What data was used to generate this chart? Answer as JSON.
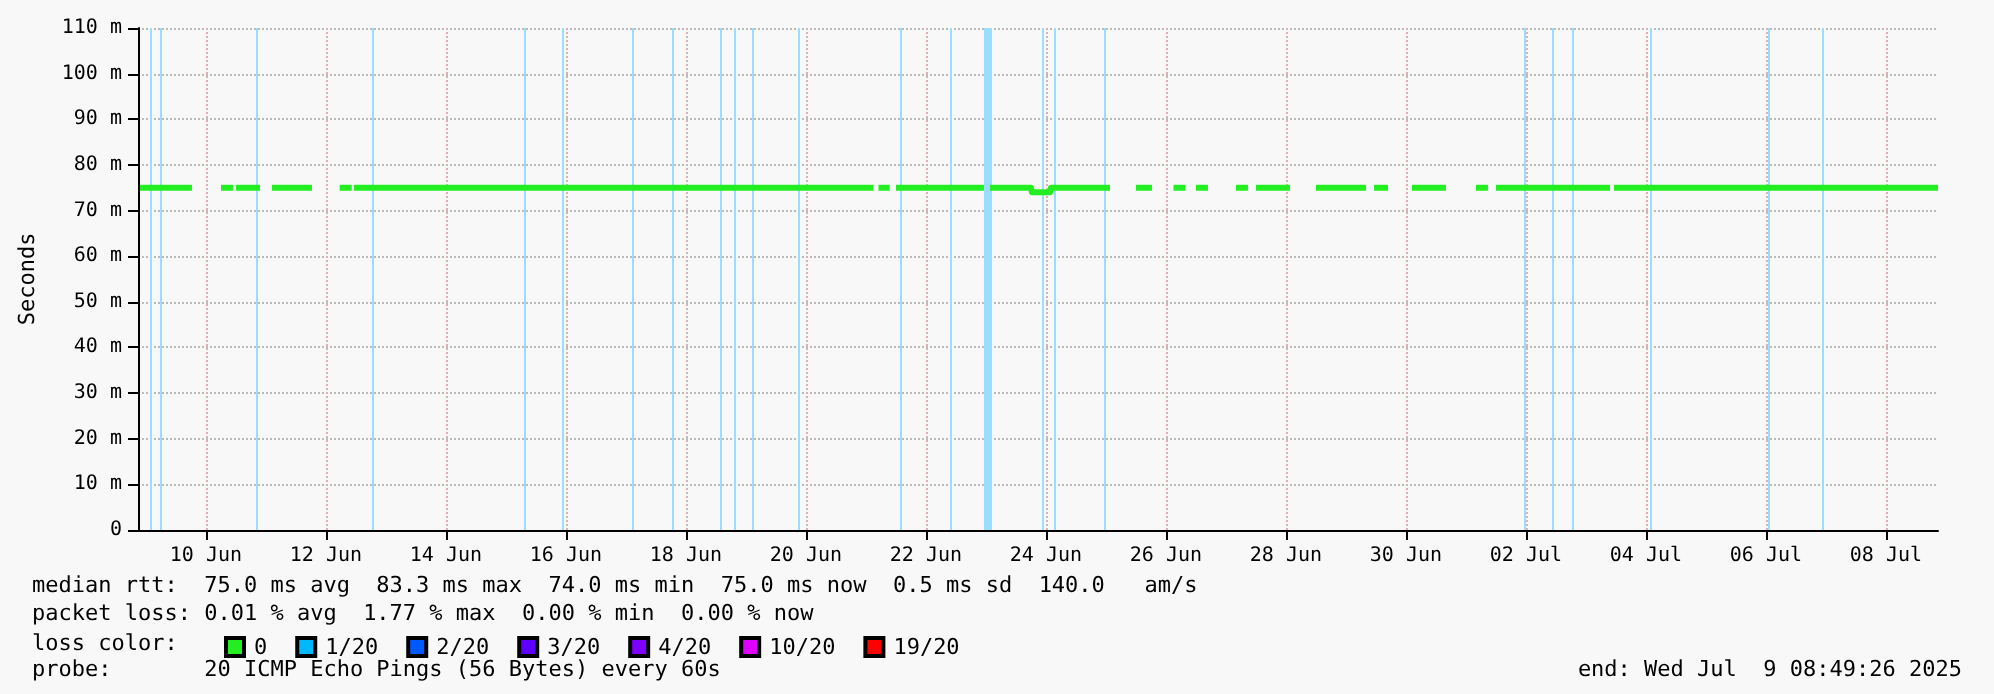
{
  "chart_data": {
    "type": "line",
    "ylabel": "Seconds",
    "xlim": [
      "2025-06-09T08:49",
      "2025-07-09T08:49"
    ],
    "xticks": [
      {
        "value": "2025-06-10T12:00",
        "label": "10 Jun"
      },
      {
        "value": "2025-06-12T12:00",
        "label": "12 Jun"
      },
      {
        "value": "2025-06-14T12:00",
        "label": "14 Jun"
      },
      {
        "value": "2025-06-16T12:00",
        "label": "16 Jun"
      },
      {
        "value": "2025-06-18T12:00",
        "label": "18 Jun"
      },
      {
        "value": "2025-06-20T12:00",
        "label": "20 Jun"
      },
      {
        "value": "2025-06-22T12:00",
        "label": "22 Jun"
      },
      {
        "value": "2025-06-24T12:00",
        "label": "24 Jun"
      },
      {
        "value": "2025-06-26T12:00",
        "label": "26 Jun"
      },
      {
        "value": "2025-06-28T12:00",
        "label": "28 Jun"
      },
      {
        "value": "2025-06-30T12:00",
        "label": "30 Jun"
      },
      {
        "value": "2025-07-02T12:00",
        "label": "02 Jul"
      },
      {
        "value": "2025-07-04T12:00",
        "label": "04 Jul"
      },
      {
        "value": "2025-07-06T12:00",
        "label": "06 Jul"
      },
      {
        "value": "2025-07-08T12:00",
        "label": "08 Jul"
      }
    ],
    "ylim": [
      0,
      110
    ],
    "yticks": [
      0,
      {
        "value": 10,
        "label": "10 m"
      },
      {
        "value": 20,
        "label": "20 m"
      },
      {
        "value": 30,
        "label": "30 m"
      },
      {
        "value": 40,
        "label": "40 m"
      },
      {
        "value": 50,
        "label": "50 m"
      },
      {
        "value": 60,
        "label": "60 m"
      },
      {
        "value": 70,
        "label": "70 m"
      },
      {
        "value": 80,
        "label": "80 m"
      },
      {
        "value": 90,
        "label": "90 m"
      },
      {
        "value": 100,
        "label": "100 m"
      },
      {
        "value": 110,
        "label": "110 m"
      }
    ],
    "grid": true,
    "legend": "bottom left",
    "legend_title": "loss color:",
    "marker": "none",
    "line_style": "solid",
    "series": [
      {
        "name": "0",
        "color": "#22ee22",
        "x": [
          "2025-06-09T09:36",
          "2025-06-10T06:24",
          "2025-06-10T13:00",
          "2025-06-10T18:00",
          "2025-06-10T22:48",
          "2025-06-10T23:20",
          "2025-06-11T00:00",
          "2025-06-11T09:36",
          "2025-06-11T12:00",
          "2025-06-11T14:24",
          "2025-06-12T06:24",
          "2025-06-12T12:00",
          "2025-06-12T17:30",
          "2025-06-12T22:18",
          "2025-06-12T22:40",
          "2025-06-12T23:12",
          "2025-06-21T15:00",
          "2025-06-21T16:00",
          "2025-06-21T17:00",
          "2025-06-21T21:30",
          "2025-06-21T22:30",
          "2025-06-22T00:00",
          "2025-06-23T11:12",
          "2025-06-23T12:30",
          "2025-06-23T13:36",
          "2025-06-24T06:00",
          "2025-06-24T06:24",
          "2025-06-24T13:36",
          "2025-06-24T14:00",
          "2025-06-25T12:00",
          "2025-06-25T13:00",
          "2025-06-25T13:36",
          "2025-06-25T18:00",
          "2025-06-26T00:00",
          "2025-06-26T06:24",
          "2025-06-26T12:00",
          "2025-06-26T15:00",
          "2025-06-26T19:48",
          "2025-06-26T21:00",
          "2025-06-27T00:00",
          "2025-06-27T04:48",
          "2025-06-27T12:00",
          "2025-06-27T16:00",
          "2025-06-27T20:48",
          "2025-06-27T21:40",
          "2025-06-28T00:00",
          "2025-06-28T13:36",
          "2025-06-28T18:00",
          "2025-06-29T00:00",
          "2025-06-29T20:00",
          "2025-06-29T21:30",
          "2025-06-29T23:12",
          "2025-06-30T04:48",
          "2025-06-30T09:00",
          "2025-06-30T14:24",
          "2025-07-01T04:00",
          "2025-07-01T10:00",
          "2025-07-01T16:00",
          "2025-07-01T20:48",
          "2025-07-01T21:40",
          "2025-07-02T00:00",
          "2025-07-03T21:36",
          "2025-07-03T22:20",
          "2025-07-03T23:12",
          "2025-07-09T08:48"
        ],
        "values": [
          75,
          75,
          null,
          75,
          75,
          null,
          75,
          75,
          null,
          75,
          75,
          null,
          75,
          75,
          null,
          75,
          75,
          null,
          75,
          75,
          null,
          75,
          75,
          null,
          75,
          75,
          74,
          74,
          75,
          75,
          75,
          75,
          null,
          75,
          75,
          null,
          75,
          75,
          null,
          75,
          75,
          null,
          75,
          75,
          null,
          75,
          75,
          null,
          75,
          75,
          null,
          75,
          75,
          null,
          75,
          75,
          null,
          75,
          75,
          null,
          75,
          75,
          null,
          75,
          75
        ]
      },
      {
        "name": "1/20",
        "color": "#00b8ff"
      },
      {
        "name": "2/20",
        "color": "#0059ff"
      },
      {
        "name": "3/20",
        "color": "#5e00ff"
      },
      {
        "name": "4/20",
        "color": "#7e00ff"
      },
      {
        "name": "10/20",
        "color": "#dd00ff"
      },
      {
        "name": "19/20",
        "color": "#ff0000"
      }
    ],
    "ref_lines": [
      {
        "axis": "x",
        "value": "2025-06-09T13:36",
        "color": "#99ddff"
      },
      {
        "axis": "x",
        "value": "2025-06-09T17:36",
        "color": "#99ddff"
      },
      {
        "axis": "x",
        "value": "2025-06-11T08:00",
        "color": "#99ddff"
      },
      {
        "axis": "x",
        "value": "2025-06-13T06:24",
        "color": "#99ddff"
      },
      {
        "axis": "x",
        "value": "2025-06-15T19:12",
        "color": "#99ddff"
      },
      {
        "axis": "x",
        "value": "2025-06-16T10:24",
        "color": "#99ddff"
      },
      {
        "axis": "x",
        "value": "2025-06-17T14:24",
        "color": "#99ddff"
      },
      {
        "axis": "x",
        "value": "2025-06-18T06:24",
        "color": "#99ddff"
      },
      {
        "axis": "x",
        "value": "2025-06-19T01:36",
        "color": "#99ddff"
      },
      {
        "axis": "x",
        "value": "2025-06-19T07:12",
        "color": "#99ddff"
      },
      {
        "axis": "x",
        "value": "2025-06-19T14:24",
        "color": "#99ddff"
      },
      {
        "axis": "x",
        "value": "2025-06-20T08:48",
        "color": "#99ddff"
      },
      {
        "axis": "x",
        "value": "2025-06-22T01:36",
        "color": "#99ddff"
      },
      {
        "axis": "x",
        "value": "2025-06-22T21:36",
        "color": "#99ddff"
      },
      {
        "axis": "x",
        "value": "2025-06-24T10:24",
        "color": "#99ddff"
      },
      {
        "axis": "x",
        "value": "2025-06-24T15:12",
        "color": "#99ddff"
      },
      {
        "axis": "x",
        "value": "2025-06-25T11:12",
        "color": "#99ddff"
      },
      {
        "axis": "x",
        "value": "2025-07-02T11:12",
        "color": "#99ddff"
      },
      {
        "axis": "x",
        "value": "2025-07-02T22:24",
        "color": "#99ddff"
      },
      {
        "axis": "x",
        "value": "2025-07-03T06:24",
        "color": "#99ddff"
      },
      {
        "axis": "x",
        "value": "2025-07-04T13:36",
        "color": "#99ddff"
      },
      {
        "axis": "x",
        "value": "2025-07-06T12:48",
        "color": "#99ddff"
      },
      {
        "axis": "x",
        "value": "2025-07-07T10:24",
        "color": "#99ddff"
      }
    ],
    "bands": [
      {
        "axis": "x",
        "from": "2025-06-23T11:12",
        "to": "2025-06-23T14:24",
        "color": "#99ddff"
      }
    ],
    "annotations": [
      "median rtt:  75.0 ms avg  83.3 ms max  74.0 ms min  75.0 ms now  0.5 ms sd  140.0   am/s",
      "packet loss: 0.01 % avg  1.77 % max  0.00 % min  0.00 % now",
      "probe:       20 ICMP Echo Pings (56 Bytes) every 60s",
      "end: Wed Jul  9 08:49:26 2025"
    ]
  }
}
